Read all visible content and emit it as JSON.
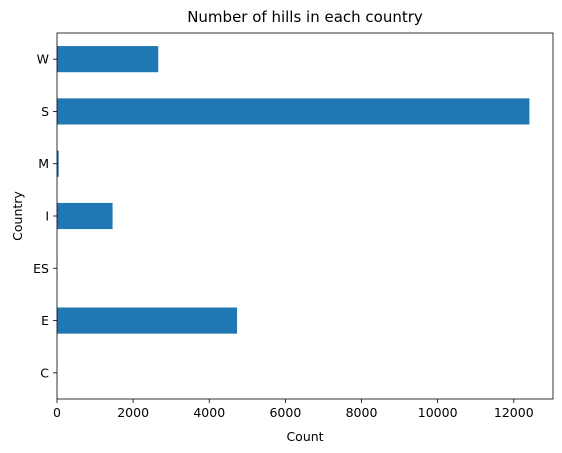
{
  "chart_data": {
    "type": "bar",
    "orientation": "horizontal",
    "title": "Number of hills in each country",
    "xlabel": "Count",
    "ylabel": "Country",
    "categories": [
      "C",
      "E",
      "ES",
      "I",
      "M",
      "S",
      "W"
    ],
    "values": [
      2,
      4730,
      3,
      1460,
      45,
      12410,
      2660
    ],
    "xlim": [
      0,
      13030
    ],
    "xticks": [
      0,
      2000,
      4000,
      6000,
      8000,
      10000,
      12000
    ],
    "grid": false,
    "bar_color": "#1f77b4"
  }
}
